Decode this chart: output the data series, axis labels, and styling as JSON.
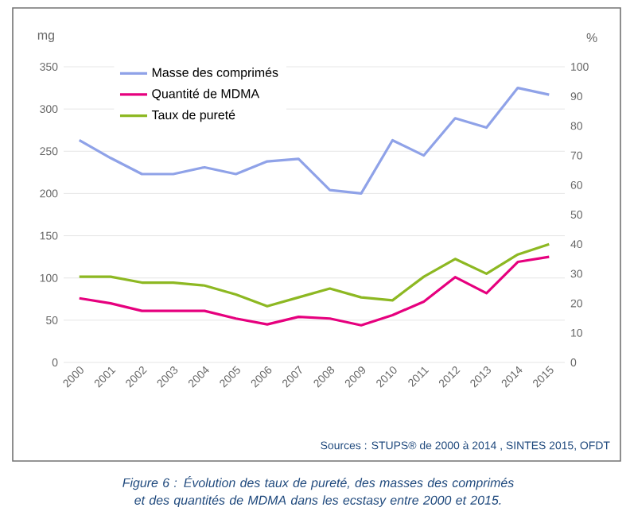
{
  "chart_data": {
    "type": "line",
    "ylabel": "mg",
    "y2label": "%",
    "categories": [
      "2000",
      "2001",
      "2002",
      "2003",
      "2004",
      "2005",
      "2006",
      "2007",
      "2008",
      "2009",
      "2010",
      "2011",
      "2012",
      "2013",
      "2014",
      "2015"
    ],
    "series": [
      {
        "name": "Masse des comprimés",
        "color": "#8fa2e8",
        "values": [
          263,
          242,
          223,
          223,
          231,
          223,
          238,
          241,
          204,
          200,
          263,
          245,
          289,
          278,
          325,
          317
        ]
      },
      {
        "name": "Quantité de MDMA",
        "color": "#e6007e",
        "values": [
          76,
          70,
          61,
          61,
          61,
          52,
          45,
          54,
          52,
          44,
          56,
          72,
          101,
          82,
          119,
          125
        ]
      },
      {
        "name": "Taux de pureté",
        "color": "#8db822",
        "axis": "y2",
        "values": [
          29,
          29,
          27,
          27,
          26,
          23,
          19,
          22,
          25,
          22,
          21,
          29,
          35,
          30,
          36.5,
          40
        ]
      }
    ],
    "ylim": [
      0,
      350
    ],
    "yticks": [
      0,
      50,
      100,
      150,
      200,
      250,
      300,
      350
    ],
    "y2lim": [
      0,
      100
    ],
    "y2ticks": [
      0,
      10,
      20,
      30,
      40,
      50,
      60,
      70,
      80,
      90,
      100
    ],
    "grid": "y",
    "legend": "top left",
    "marker": "none",
    "line_style": "solid",
    "annotations": [
      "Sources : STUPS® de 2000 à 2014 , SINTES 2015, OFDT",
      "Figure 6 : Évolution des taux de pureté, des masses des comprimés et des quantités de MDMA dans les ecstasy entre 2000 et 2015."
    ]
  }
}
